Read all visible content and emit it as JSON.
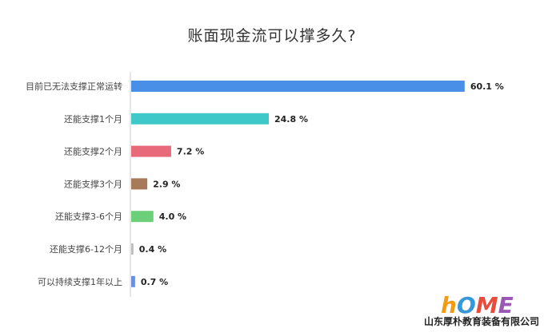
{
  "chart_data": {
    "type": "bar",
    "orientation": "horizontal",
    "title": "账面现金流可以撑多久?",
    "xlim": [
      0,
      62
    ],
    "grid": false,
    "categories": [
      "目前已无法支撑正常运转",
      "还能支撑1个月",
      "还能支撑2个月",
      "还能支撑3个月",
      "还能支撑3-6个月",
      "还能支撑6-12个月",
      "可以持续支撑1年以上"
    ],
    "values": [
      60.1,
      24.8,
      7.2,
      2.9,
      4.0,
      0.4,
      0.7
    ],
    "value_labels": [
      "60.1 %",
      "24.8 %",
      "7.2 %",
      "2.9 %",
      "4.0 %",
      "0.4 %",
      "0.7 %"
    ],
    "colors": [
      "#4a8fe7",
      "#3ec8c8",
      "#e8697a",
      "#a77a5a",
      "#6cd07a",
      "#bdbdbd",
      "#6a8ee0"
    ]
  },
  "watermark": {
    "logo_text": "hOME",
    "company": "山东厚朴教育装备有限公司",
    "logo_colors": [
      "#f39c12",
      "#3498db",
      "#e74c3c",
      "#9b59b6",
      "#2ecc71"
    ]
  }
}
